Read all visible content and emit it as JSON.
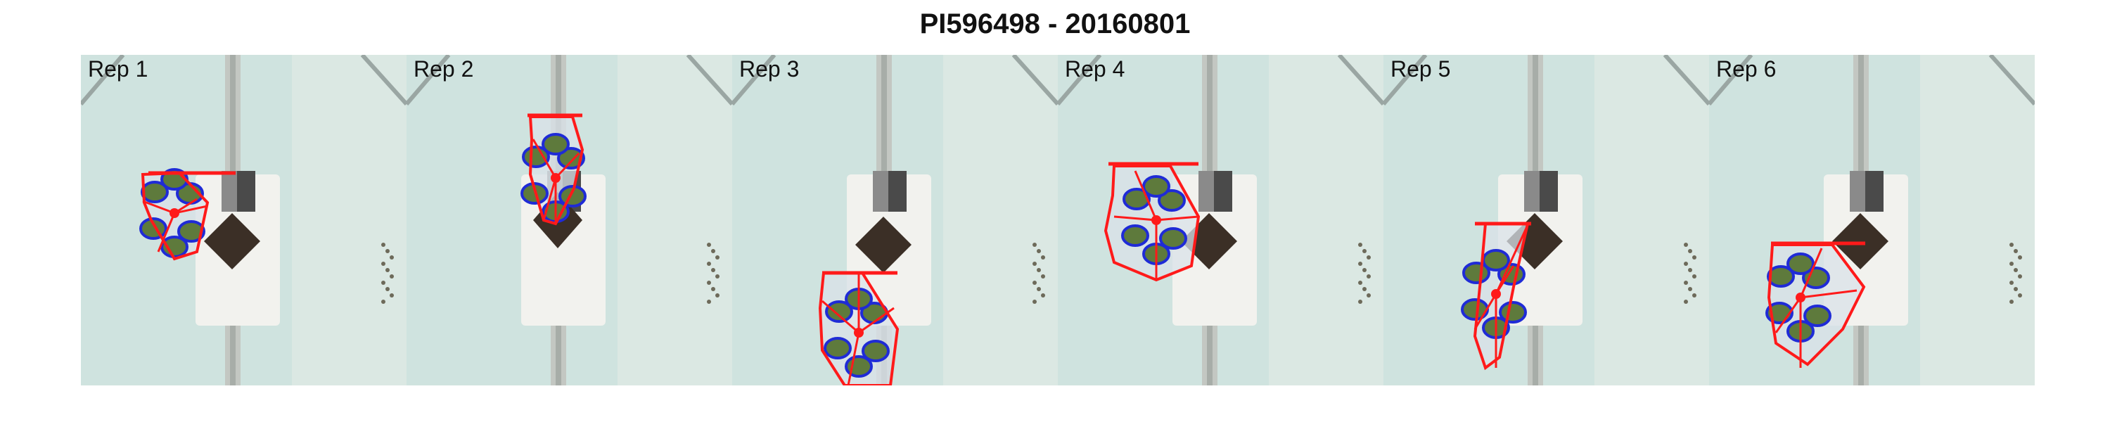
{
  "figure": {
    "title": "PI596498 - 20160801"
  },
  "panels": [
    {
      "label": "Rep 1"
    },
    {
      "label": "Rep 2"
    },
    {
      "label": "Rep 3"
    },
    {
      "label": "Rep 4"
    },
    {
      "label": "Rep 5"
    },
    {
      "label": "Rep 6"
    }
  ],
  "colors": {
    "hull": "#ff1a1a",
    "contour": "#1f2bd6",
    "leaf": "#5e7a3c",
    "background": "#cfe3df",
    "tray": "#f2f2ee",
    "soil": "#3b2f26"
  }
}
